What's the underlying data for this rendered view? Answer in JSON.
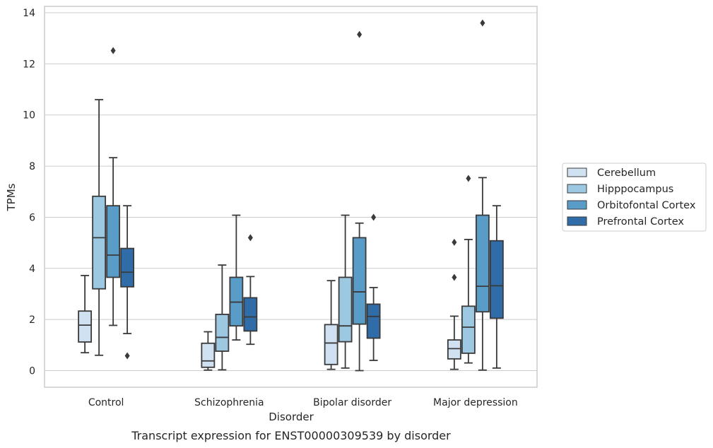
{
  "chart_data": {
    "type": "box",
    "title": "",
    "caption": "Transcript expression for ENST00000309539 by disorder",
    "xlabel": "Disorder",
    "ylabel": "TPMs",
    "ylim": [
      -0.65,
      14.25
    ],
    "yticks": [
      0,
      2,
      4,
      6,
      8,
      10,
      12,
      14
    ],
    "grid": "horizontal",
    "legend_position": "right",
    "categories": [
      "Control",
      "Schizophrenia",
      "Bipolar disorder",
      "Major depression"
    ],
    "series": [
      {
        "name": "Cerebellum",
        "color": "#d0e2f1",
        "boxes": [
          {
            "whislo": 0.7,
            "q1": 1.12,
            "med": 1.78,
            "q3": 2.33,
            "whishi": 3.72,
            "fliers": []
          },
          {
            "whislo": 0.02,
            "q1": 0.13,
            "med": 0.38,
            "q3": 1.07,
            "whishi": 1.52,
            "fliers": []
          },
          {
            "whislo": 0.05,
            "q1": 0.24,
            "med": 1.08,
            "q3": 1.8,
            "whishi": 3.52,
            "fliers": []
          },
          {
            "whislo": 0.05,
            "q1": 0.46,
            "med": 0.86,
            "q3": 1.2,
            "whishi": 2.13,
            "fliers": [
              3.65,
              5.02
            ]
          }
        ]
      },
      {
        "name": "Hipppocampus",
        "color": "#9dc8e1",
        "boxes": [
          {
            "whislo": 0.6,
            "q1": 3.2,
            "med": 5.2,
            "q3": 6.82,
            "whishi": 10.6,
            "fliers": []
          },
          {
            "whislo": 0.03,
            "q1": 0.76,
            "med": 1.3,
            "q3": 2.2,
            "whishi": 4.13,
            "fliers": []
          },
          {
            "whislo": 0.1,
            "q1": 1.13,
            "med": 1.75,
            "q3": 3.65,
            "whishi": 6.08,
            "fliers": []
          },
          {
            "whislo": 0.3,
            "q1": 0.68,
            "med": 1.7,
            "q3": 2.52,
            "whishi": 5.13,
            "fliers": [
              7.52
            ]
          }
        ]
      },
      {
        "name": "Orbitofontal Cortex",
        "color": "#5a9cc8",
        "boxes": [
          {
            "whislo": 1.77,
            "q1": 3.65,
            "med": 4.52,
            "q3": 6.45,
            "whishi": 8.33,
            "fliers": [
              12.52
            ]
          },
          {
            "whislo": 1.2,
            "q1": 1.75,
            "med": 2.68,
            "q3": 3.65,
            "whishi": 6.08,
            "fliers": []
          },
          {
            "whislo": 0.0,
            "q1": 1.82,
            "med": 3.08,
            "q3": 5.2,
            "whishi": 5.77,
            "fliers": [
              13.15
            ]
          },
          {
            "whislo": 0.02,
            "q1": 2.3,
            "med": 3.3,
            "q3": 6.08,
            "whishi": 7.55,
            "fliers": [
              13.6
            ]
          }
        ]
      },
      {
        "name": "Prefrontal Cortex",
        "color": "#2f6ca8",
        "boxes": [
          {
            "whislo": 1.45,
            "q1": 3.28,
            "med": 3.85,
            "q3": 4.78,
            "whishi": 6.45,
            "fliers": [
              0.58
            ]
          },
          {
            "whislo": 1.03,
            "q1": 1.55,
            "med": 2.1,
            "q3": 2.85,
            "whishi": 3.68,
            "fliers": [
              5.2
            ]
          },
          {
            "whislo": 0.4,
            "q1": 1.27,
            "med": 2.12,
            "q3": 2.6,
            "whishi": 3.25,
            "fliers": [
              6.0
            ]
          },
          {
            "whislo": 0.1,
            "q1": 2.05,
            "med": 3.32,
            "q3": 5.08,
            "whishi": 6.45,
            "fliers": []
          }
        ]
      }
    ]
  }
}
